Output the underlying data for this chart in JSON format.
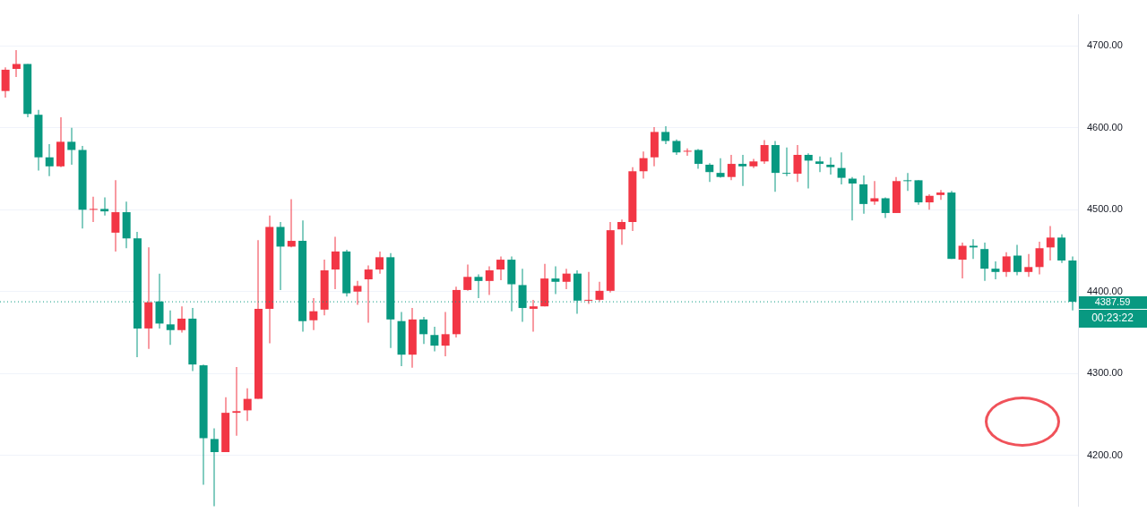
{
  "chart_data": {
    "type": "candlestick",
    "categories": [
      null,
      null,
      null,
      null,
      null,
      null,
      null,
      null,
      null,
      null,
      null,
      null,
      null,
      null,
      null,
      null,
      null,
      null,
      null,
      null,
      null,
      null,
      null,
      null,
      null,
      null,
      null,
      null,
      null,
      null,
      null,
      null,
      null,
      null,
      null,
      null,
      null,
      null,
      null,
      null,
      null,
      null,
      null,
      null,
      null,
      null,
      null,
      null,
      null,
      null,
      null,
      null,
      null,
      null,
      null,
      null,
      null,
      null,
      null,
      null,
      null,
      null,
      null,
      null,
      null,
      null,
      null,
      null,
      null,
      null,
      null,
      null,
      null,
      null,
      null,
      null,
      null,
      null,
      null,
      null,
      null,
      null,
      null,
      null,
      null,
      null,
      null,
      null,
      null,
      null,
      null,
      null,
      null,
      null,
      null,
      null,
      null,
      null
    ],
    "ohlc": [
      [
        4645,
        4674,
        4637,
        4671
      ],
      [
        4672,
        4695,
        4662,
        4678
      ],
      [
        4678,
        4678,
        4613,
        4617
      ],
      [
        4616,
        4622,
        4548,
        4564
      ],
      [
        4564,
        4580,
        4541,
        4553
      ],
      [
        4553,
        4613,
        4552,
        4583
      ],
      [
        4583,
        4600,
        4555,
        4573
      ],
      [
        4573,
        4578,
        4477,
        4500
      ],
      [
        4500,
        4516,
        4485,
        4501
      ],
      [
        4501,
        4515,
        4493,
        4498
      ],
      [
        4472,
        4536,
        4449,
        4497
      ],
      [
        4497,
        4510,
        4453,
        4465
      ],
      [
        4465,
        4473,
        4320,
        4355
      ],
      [
        4355,
        4454,
        4330,
        4387
      ],
      [
        4388,
        4422,
        4355,
        4361
      ],
      [
        4360,
        4377,
        4335,
        4353
      ],
      [
        4353,
        4382,
        4350,
        4367
      ],
      [
        4367,
        4380,
        4303,
        4311
      ],
      [
        4310,
        4311,
        4164,
        4221
      ],
      [
        4220,
        4233,
        4138,
        4204
      ],
      [
        4204,
        4271,
        4204,
        4252
      ],
      [
        4252,
        4308,
        4224,
        4254
      ],
      [
        4255,
        4282,
        4242,
        4269
      ],
      [
        4269,
        4463,
        4269,
        4379
      ],
      [
        4379,
        4493,
        4337,
        4479
      ],
      [
        4479,
        4485,
        4402,
        4455
      ],
      [
        4455,
        4513,
        4454,
        4462
      ],
      [
        4462,
        4487,
        4351,
        4364
      ],
      [
        4365,
        4392,
        4353,
        4376
      ],
      [
        4378,
        4439,
        4371,
        4426
      ],
      [
        4427,
        4467,
        4403,
        4449
      ],
      [
        4449,
        4451,
        4394,
        4398
      ],
      [
        4400,
        4413,
        4384,
        4407
      ],
      [
        4415,
        4432,
        4362,
        4427
      ],
      [
        4427,
        4449,
        4422,
        4442
      ],
      [
        4442,
        4447,
        4331,
        4366
      ],
      [
        4364,
        4375,
        4309,
        4323
      ],
      [
        4323,
        4380,
        4307,
        4366
      ],
      [
        4366,
        4369,
        4336,
        4348
      ],
      [
        4347,
        4357,
        4327,
        4334
      ],
      [
        4334,
        4375,
        4321,
        4348
      ],
      [
        4348,
        4406,
        4344,
        4402
      ],
      [
        4402,
        4433,
        4401,
        4418
      ],
      [
        4418,
        4421,
        4392,
        4413
      ],
      [
        4413,
        4431,
        4396,
        4426
      ],
      [
        4427,
        4443,
        4414,
        4439
      ],
      [
        4439,
        4443,
        4376,
        4409
      ],
      [
        4408,
        4428,
        4363,
        4380
      ],
      [
        4379,
        4390,
        4351,
        4382
      ],
      [
        4382,
        4434,
        4382,
        4416
      ],
      [
        4416,
        4431,
        4397,
        4412
      ],
      [
        4412,
        4428,
        4403,
        4422
      ],
      [
        4422,
        4426,
        4373,
        4389
      ],
      [
        4389,
        4424,
        4385,
        4390
      ],
      [
        4390,
        4412,
        4388,
        4401
      ],
      [
        4401,
        4485,
        4399,
        4475
      ],
      [
        4476,
        4488,
        4457,
        4485
      ],
      [
        4485,
        4552,
        4474,
        4547
      ],
      [
        4547,
        4571,
        4538,
        4563
      ],
      [
        4564,
        4601,
        4553,
        4595
      ],
      [
        4595,
        4602,
        4580,
        4584
      ],
      [
        4584,
        4586,
        4567,
        4570
      ],
      [
        4571,
        4575,
        4566,
        4572
      ],
      [
        4573,
        4574,
        4550,
        4556
      ],
      [
        4555,
        4557,
        4534,
        4546
      ],
      [
        4545,
        4563,
        4539,
        4540
      ],
      [
        4540,
        4567,
        4536,
        4556
      ],
      [
        4556,
        4567,
        4529,
        4553
      ],
      [
        4553,
        4562,
        4551,
        4559
      ],
      [
        4559,
        4585,
        4556,
        4579
      ],
      [
        4579,
        4584,
        4522,
        4545
      ],
      [
        4545,
        4576,
        4541,
        4544
      ],
      [
        4544,
        4579,
        4534,
        4567
      ],
      [
        4567,
        4569,
        4526,
        4560
      ],
      [
        4559,
        4565,
        4546,
        4556
      ],
      [
        4555,
        4564,
        4543,
        4552
      ],
      [
        4551,
        4570,
        4531,
        4539
      ],
      [
        4538,
        4540,
        4487,
        4532
      ],
      [
        4531,
        4542,
        4495,
        4507
      ],
      [
        4510,
        4535,
        4506,
        4514
      ],
      [
        4514,
        4515,
        4490,
        4496
      ],
      [
        4496,
        4540,
        4496,
        4535
      ],
      [
        4536,
        4545,
        4523,
        4535
      ],
      [
        4536,
        4536,
        4506,
        4509
      ],
      [
        4509,
        4519,
        4500,
        4517
      ],
      [
        4518,
        4524,
        4512,
        4521
      ],
      [
        4521,
        4523,
        4440,
        4440
      ],
      [
        4439,
        4460,
        4416,
        4456
      ],
      [
        4456,
        4464,
        4440,
        4454
      ],
      [
        4452,
        4460,
        4413,
        4428
      ],
      [
        4428,
        4437,
        4415,
        4424
      ],
      [
        4424,
        4448,
        4418,
        4443
      ],
      [
        4444,
        4457,
        4420,
        4424
      ],
      [
        4424,
        4446,
        4418,
        4430
      ],
      [
        4430,
        4461,
        4421,
        4453
      ],
      [
        4454,
        4480,
        4438,
        4466
      ],
      [
        4466,
        4470,
        4435,
        4438
      ],
      [
        4438,
        4443,
        4377,
        4387.59
      ]
    ],
    "colors": [
      "#f23645",
      "#f23645",
      "#089981",
      "#089981",
      "#089981",
      "#f23645",
      "#089981",
      "#089981",
      "#f23645",
      "#089981",
      "#f23645",
      "#089981",
      "#089981",
      "#f23645",
      "#089981",
      "#089981",
      "#f23645",
      "#089981",
      "#089981",
      "#089981",
      "#f23645",
      "#f23645",
      "#f23645",
      "#f23645",
      "#f23645",
      "#089981",
      "#f23645",
      "#089981",
      "#f23645",
      "#f23645",
      "#f23645",
      "#089981",
      "#f23645",
      "#f23645",
      "#f23645",
      "#089981",
      "#089981",
      "#f23645",
      "#089981",
      "#089981",
      "#f23645",
      "#f23645",
      "#f23645",
      "#089981",
      "#f23645",
      "#f23645",
      "#089981",
      "#089981",
      "#f23645",
      "#f23645",
      "#089981",
      "#f23645",
      "#089981",
      "#f23645",
      "#f23645",
      "#f23645",
      "#f23645",
      "#f23645",
      "#f23645",
      "#f23645",
      "#089981",
      "#089981",
      "#f23645",
      "#089981",
      "#089981",
      "#089981",
      "#f23645",
      "#089981",
      "#f23645",
      "#f23645",
      "#089981",
      "#089981",
      "#f23645",
      "#089981",
      "#089981",
      "#089981",
      "#089981",
      "#089981",
      "#089981",
      "#f23645",
      "#089981",
      "#f23645",
      "#089981",
      "#089981",
      "#f23645",
      "#f23645",
      "#089981",
      "#f23645",
      "#089981",
      "#089981",
      "#089981",
      "#f23645",
      "#089981",
      "#f23645",
      "#f23645",
      "#f23645",
      "#089981",
      "#089981"
    ],
    "ylim": [
      4138,
      4738
    ],
    "yticks": [
      {
        "value": 4200,
        "label": "4200.00"
      },
      {
        "value": 4300,
        "label": "4300.00"
      },
      {
        "value": 4400,
        "label": "4400.00"
      },
      {
        "value": 4500,
        "label": "4500.00"
      },
      {
        "value": 4600,
        "label": "4600.00"
      },
      {
        "value": 4700,
        "label": "4700.00"
      }
    ],
    "tick_labels": "y",
    "grid": "y",
    "ref_lines": [
      {
        "axis": "y",
        "value": 4387.59,
        "label": "4387.59",
        "color": "#089981",
        "line_style": "dotted"
      }
    ],
    "annotations": [
      "00:23:22"
    ]
  }
}
